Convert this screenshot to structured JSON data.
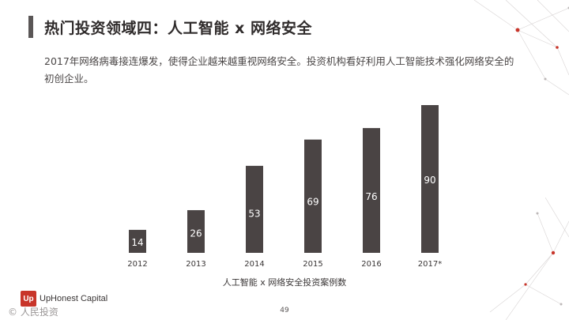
{
  "header": {
    "title": "热门投资领域四：人工智能 x 网络安全"
  },
  "intro": {
    "text": "2017年网络病毒接连爆发，使得企业越来越重视网络安全。投资机构看好利用人工智能技术强化网络安全的初创企业。"
  },
  "chart_data": {
    "type": "bar",
    "categories": [
      "2012",
      "2013",
      "2014",
      "2015",
      "2016",
      "2017*"
    ],
    "values": [
      14,
      26,
      53,
      69,
      76,
      90
    ],
    "title": "",
    "xlabel": "人工智能 x 网络安全投资案例数",
    "ylabel": "",
    "ylim": [
      0,
      90
    ],
    "bar_color": "#4a4444",
    "grid": false,
    "legend": "none"
  },
  "footer": {
    "logo_mark": "Up",
    "logo_text": "UpHonest Capital",
    "watermark": "© 人民投资",
    "page_number": "49"
  },
  "colors": {
    "accent_red": "#c8352a",
    "bar": "#4a4444"
  }
}
